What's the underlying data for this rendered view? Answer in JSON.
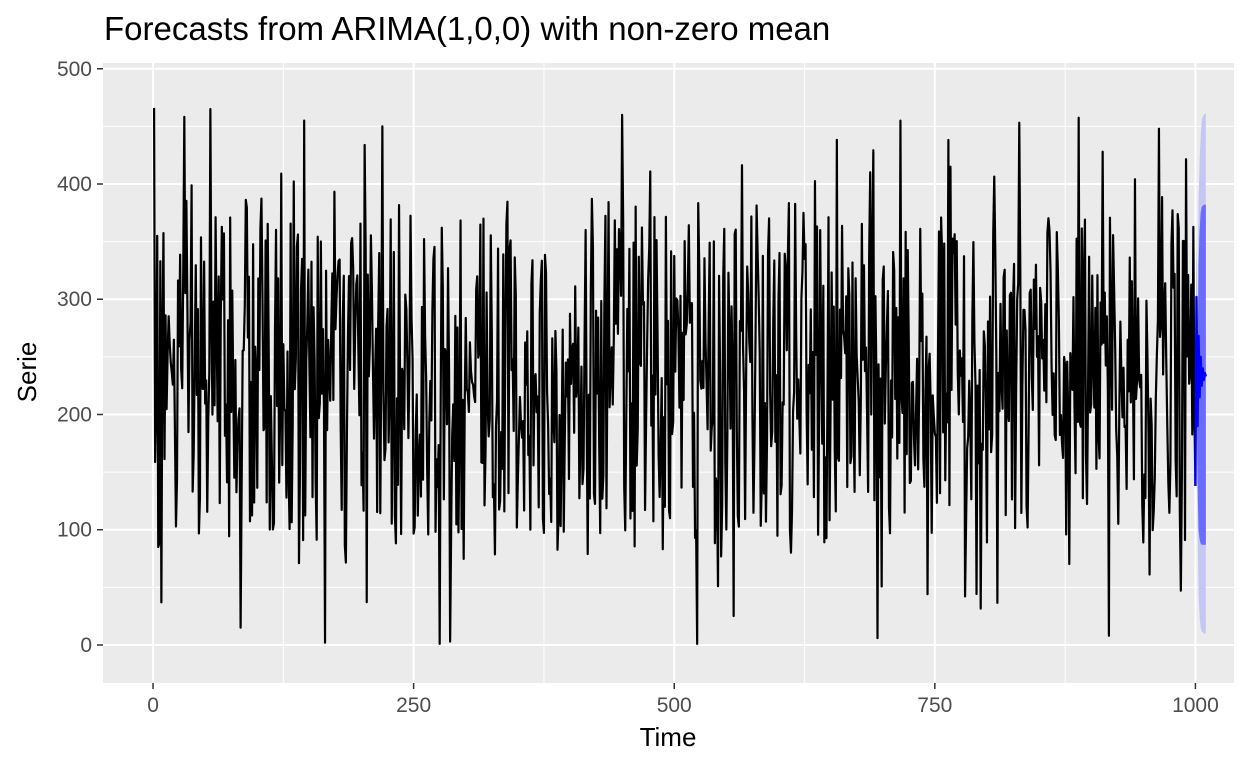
{
  "chart_data": {
    "type": "line",
    "title": "Forecasts from ARIMA(1,0,0) with non-zero mean",
    "xlabel": "Time",
    "ylabel": "Serie",
    "xlim": [
      -48,
      1037
    ],
    "ylim": [
      -33,
      505
    ],
    "xticks": [
      0,
      250,
      500,
      750,
      1000
    ],
    "xtick_labels": [
      "0",
      "250",
      "500",
      "750",
      "1000"
    ],
    "yticks": [
      0,
      100,
      200,
      300,
      400,
      500
    ],
    "ytick_labels": [
      "0",
      "100",
      "200",
      "300",
      "400",
      "500"
    ],
    "grid": true,
    "legend": "none",
    "series": [
      {
        "role": "observed",
        "color": "#000000",
        "n": 1000,
        "x_range": [
          1,
          1000
        ],
        "mean": 232,
        "min": 1,
        "max": 466,
        "sample": [
          {
            "x": 1,
            "y": 466
          },
          {
            "x": 3,
            "y": 210
          },
          {
            "x": 5,
            "y": 85
          },
          {
            "x": 7,
            "y": 333
          },
          {
            "x": 8,
            "y": 37
          },
          {
            "x": 55,
            "y": 465
          },
          {
            "x": 84,
            "y": 15
          },
          {
            "x": 145,
            "y": 455
          },
          {
            "x": 165,
            "y": 2
          },
          {
            "x": 220,
            "y": 450
          },
          {
            "x": 285,
            "y": 3
          },
          {
            "x": 450,
            "y": 460
          },
          {
            "x": 522,
            "y": 1
          },
          {
            "x": 695,
            "y": 6
          },
          {
            "x": 717,
            "y": 455
          },
          {
            "x": 917,
            "y": 8
          },
          {
            "x": 965,
            "y": 448
          },
          {
            "x": 1000,
            "y": 138
          }
        ]
      },
      {
        "role": "point-forecast",
        "color": "#0000ff",
        "x_range": [
          1001,
          1010
        ],
        "values": [
          302,
          190,
          268,
          215,
          250,
          225,
          240,
          230,
          236,
          233
        ]
      }
    ],
    "intervals": [
      {
        "level": "80%",
        "color": "#6b6bff",
        "x_range": [
          1001,
          1010
        ],
        "lower": [
          258,
          140,
          100,
          92,
          88,
          87,
          87,
          87,
          87,
          87
        ],
        "upper": [
          346,
          240,
          330,
          360,
          375,
          380,
          381,
          382,
          382,
          382
        ]
      },
      {
        "level": "95%",
        "color": "#c6c6f5",
        "x_range": [
          1001,
          1010
        ],
        "lower": [
          235,
          110,
          45,
          25,
          15,
          12,
          11,
          10,
          10,
          10
        ],
        "upper": [
          370,
          270,
          385,
          420,
          440,
          455,
          458,
          460,
          461,
          461
        ]
      }
    ]
  }
}
